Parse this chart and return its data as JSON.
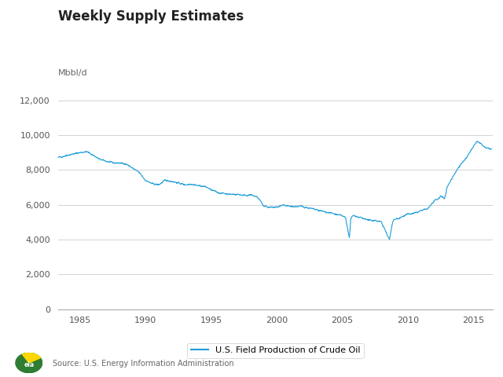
{
  "title": "Weekly Supply Estimates",
  "ylabel": "Mbbl/d",
  "source": "Source: U.S. Energy Information Administration",
  "legend_label": "U.S. Field Production of Crude Oil",
  "line_color": "#1B9CD9",
  "background_color": "#FFFFFF",
  "ylim": [
    0,
    13000
  ],
  "yticks": [
    0,
    2000,
    4000,
    6000,
    8000,
    10000,
    12000
  ],
  "xlim_start": 1983.3,
  "xlim_end": 2016.5,
  "xtick_years": [
    1985,
    1990,
    1995,
    2000,
    2005,
    2010,
    2015
  ],
  "title_fontsize": 12,
  "ylabel_fontsize": 8,
  "tick_fontsize": 8,
  "legend_fontsize": 8,
  "source_fontsize": 7
}
